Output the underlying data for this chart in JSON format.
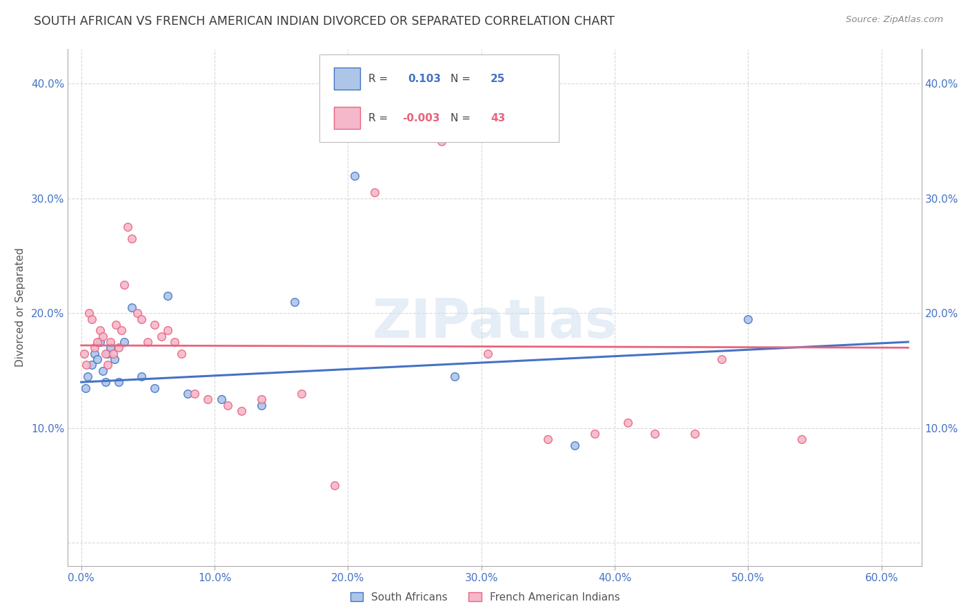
{
  "title": "SOUTH AFRICAN VS FRENCH AMERICAN INDIAN DIVORCED OR SEPARATED CORRELATION CHART",
  "source": "Source: ZipAtlas.com",
  "ylabel": "Divorced or Separated",
  "xlim": [
    -1.0,
    63.0
  ],
  "ylim": [
    -2.0,
    43.0
  ],
  "yticks": [
    0.0,
    10.0,
    20.0,
    30.0,
    40.0
  ],
  "xticks": [
    0.0,
    10.0,
    20.0,
    30.0,
    40.0,
    50.0,
    60.0
  ],
  "blue_R": 0.103,
  "blue_N": 25,
  "pink_R": -0.003,
  "pink_N": 43,
  "blue_points_x": [
    0.3,
    0.5,
    0.8,
    1.0,
    1.2,
    1.4,
    1.6,
    1.8,
    2.0,
    2.2,
    2.5,
    2.8,
    3.2,
    3.8,
    4.5,
    5.5,
    6.5,
    8.0,
    10.5,
    13.5,
    16.0,
    20.5,
    28.0,
    37.0,
    50.0
  ],
  "blue_points_y": [
    13.5,
    14.5,
    15.5,
    16.5,
    16.0,
    17.5,
    15.0,
    14.0,
    16.5,
    17.0,
    16.0,
    14.0,
    17.5,
    20.5,
    14.5,
    13.5,
    21.5,
    13.0,
    12.5,
    12.0,
    21.0,
    32.0,
    14.5,
    8.5,
    19.5
  ],
  "pink_points_x": [
    0.2,
    0.4,
    0.6,
    0.8,
    1.0,
    1.2,
    1.4,
    1.6,
    1.8,
    2.0,
    2.2,
    2.4,
    2.6,
    2.8,
    3.0,
    3.2,
    3.5,
    3.8,
    4.2,
    4.5,
    5.0,
    5.5,
    6.0,
    6.5,
    7.0,
    7.5,
    8.5,
    9.5,
    11.0,
    12.0,
    13.5,
    16.5,
    19.0,
    22.0,
    27.0,
    30.5,
    35.0,
    38.5,
    41.0,
    43.0,
    46.0,
    48.0,
    54.0
  ],
  "pink_points_y": [
    16.5,
    15.5,
    20.0,
    19.5,
    17.0,
    17.5,
    18.5,
    18.0,
    16.5,
    15.5,
    17.5,
    16.5,
    19.0,
    17.0,
    18.5,
    22.5,
    27.5,
    26.5,
    20.0,
    19.5,
    17.5,
    19.0,
    18.0,
    18.5,
    17.5,
    16.5,
    13.0,
    12.5,
    12.0,
    11.5,
    12.5,
    13.0,
    5.0,
    30.5,
    35.0,
    16.5,
    9.0,
    9.5,
    10.5,
    9.5,
    9.5,
    16.0,
    9.0
  ],
  "blue_line_x": [
    0.0,
    62.0
  ],
  "blue_line_y": [
    14.0,
    17.5
  ],
  "pink_line_x": [
    0.0,
    62.0
  ],
  "pink_line_y": [
    17.2,
    17.0
  ],
  "blue_color": "#adc6e8",
  "pink_color": "#f5b8cb",
  "blue_line_color": "#4472c4",
  "pink_line_color": "#e8637d",
  "background_color": "#ffffff",
  "grid_color": "#d0d0d0",
  "title_color": "#3a3a3a",
  "axis_tick_color": "#4472c4",
  "watermark_text": "ZIPatlas",
  "marker_size": 70,
  "legend_blue_label_r": "0.103",
  "legend_blue_label_n": "25",
  "legend_pink_label_r": "-0.003",
  "legend_pink_label_n": "43",
  "bottom_legend_blue": "South Africans",
  "bottom_legend_pink": "French American Indians"
}
